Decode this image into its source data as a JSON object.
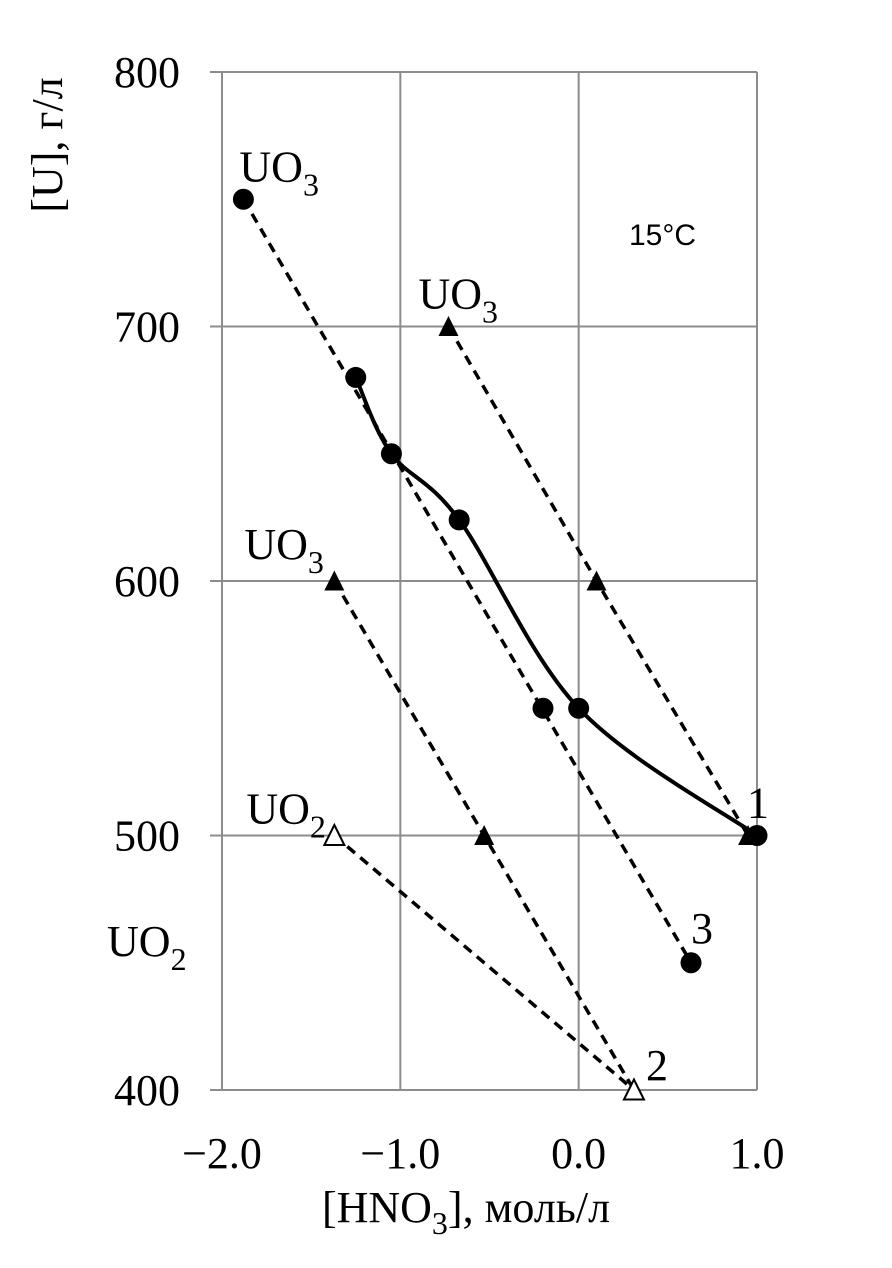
{
  "chart_data": {
    "type": "line",
    "title": "",
    "annotation": "15°C",
    "xlabel": "[HNO3], моль/л",
    "ylabel": "[U], г/л",
    "xlim": [
      -2.0,
      1.0
    ],
    "ylim": [
      400,
      800
    ],
    "x_ticks": [
      "−2.0",
      "−1.0",
      "0.0",
      "1.0"
    ],
    "y_ticks": [
      "400",
      "500",
      "600",
      "700",
      "800"
    ],
    "grid": true,
    "legend": "none",
    "series": [
      {
        "marker": "circle",
        "style": "solid",
        "points": [
          [
            -1.25,
            680
          ],
          [
            -1.05,
            650
          ],
          [
            -0.67,
            624
          ],
          [
            0.0,
            550
          ],
          [
            1.0,
            500
          ]
        ]
      },
      {
        "marker": "circle",
        "style": "dashed",
        "points": [
          [
            -1.88,
            750
          ],
          [
            0.63,
            450
          ]
        ]
      },
      {
        "marker": "circle",
        "style": "none",
        "points": [
          [
            -0.2,
            550
          ]
        ]
      },
      {
        "marker": "triangle",
        "style": "dashed",
        "points": [
          [
            -0.73,
            700
          ],
          [
            0.1,
            600
          ],
          [
            0.95,
            500
          ]
        ]
      },
      {
        "marker": "triangle",
        "style": "dashed",
        "points": [
          [
            -1.37,
            600
          ],
          [
            -0.53,
            500
          ],
          [
            0.31,
            400
          ]
        ]
      },
      {
        "marker": "triangle-open",
        "style": "dashed",
        "points": [
          [
            -1.37,
            500
          ],
          [
            0.31,
            400
          ]
        ]
      }
    ],
    "point_labels": [
      {
        "text": "UO",
        "sub": "3",
        "x": -1.88,
        "y": 750
      },
      {
        "text": "UO",
        "sub": "3",
        "x": -0.73,
        "y": 700
      },
      {
        "text": "UO",
        "sub": "3",
        "x": -1.37,
        "y": 600
      },
      {
        "text": "UO",
        "sub": "2",
        "x": -1.37,
        "y": 500
      },
      {
        "text": "UO",
        "sub": "2",
        "x": null,
        "y": 450
      },
      {
        "text": "1",
        "sub": "",
        "x": 1.0,
        "y": 500
      },
      {
        "text": "2",
        "sub": "",
        "x": 0.31,
        "y": 400
      },
      {
        "text": "3",
        "sub": "",
        "x": 0.63,
        "y": 450
      }
    ]
  }
}
